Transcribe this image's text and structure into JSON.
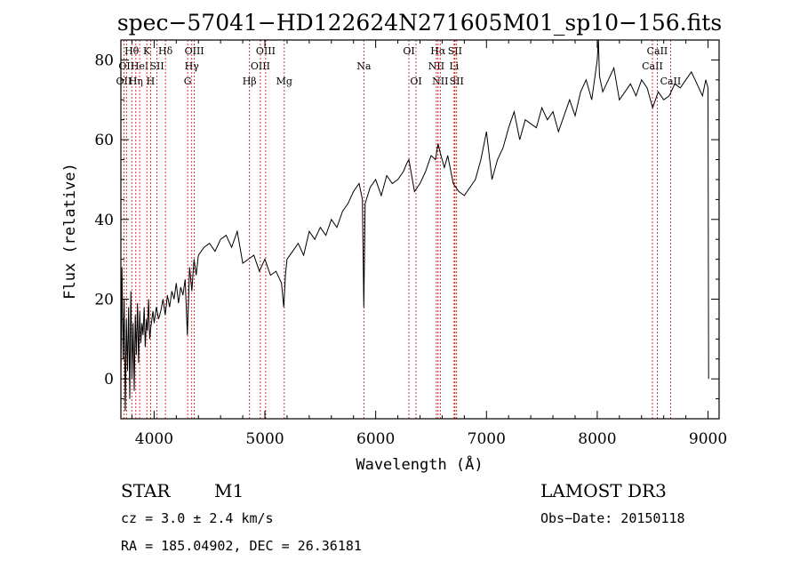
{
  "chart_data": {
    "type": "line",
    "title": "spec−57041−HD122624N271605M01_sp10−156.fits",
    "xlabel": "Wavelength (Å)",
    "ylabel": "Flux (relative)",
    "xlim": [
      3700,
      9100
    ],
    "ylim": [
      -10,
      85
    ],
    "x_ticks": [
      4000,
      5000,
      6000,
      7000,
      8000,
      9000
    ],
    "y_ticks": [
      0,
      20,
      40,
      60,
      80
    ],
    "grid": false,
    "colors": {
      "spectrum": "#000000",
      "line_markers": "#cc0000"
    },
    "series": [
      {
        "x": [
          3700,
          3710,
          3720,
          3730,
          3740,
          3750,
          3760,
          3770,
          3780,
          3790,
          3800,
          3810,
          3820,
          3830,
          3840,
          3850,
          3860,
          3870,
          3880,
          3890,
          3900,
          3910,
          3920,
          3930,
          3940,
          3950,
          3960,
          3970,
          3980,
          3990,
          4000,
          4020,
          4040,
          4060,
          4080,
          4100,
          4120,
          4140,
          4160,
          4180,
          4200,
          4220,
          4240,
          4260,
          4280,
          4300,
          4320,
          4340,
          4360,
          4380,
          4400,
          4450,
          4500,
          4550,
          4600,
          4650,
          4700,
          4750,
          4800,
          4850,
          4900,
          4950,
          5000,
          5050,
          5100,
          5150,
          5170,
          5185,
          5200,
          5250,
          5300,
          5350,
          5400,
          5450,
          5500,
          5550,
          5600,
          5650,
          5700,
          5750,
          5800,
          5850,
          5880,
          5893,
          5905,
          5950,
          6000,
          6050,
          6100,
          6150,
          6200,
          6250,
          6280,
          6300,
          6350,
          6400,
          6450,
          6500,
          6540,
          6563,
          6580,
          6600,
          6620,
          6650,
          6700,
          6750,
          6800,
          6850,
          6900,
          6950,
          7000,
          7050,
          7100,
          7150,
          7200,
          7250,
          7300,
          7350,
          7400,
          7450,
          7500,
          7550,
          7600,
          7650,
          7700,
          7750,
          7800,
          7850,
          7900,
          7950,
          8000,
          8010,
          8020,
          8050,
          8100,
          8150,
          8200,
          8250,
          8300,
          8350,
          8400,
          8450,
          8500,
          8550,
          8600,
          8650,
          8700,
          8750,
          8800,
          8850,
          8900,
          8950,
          8980,
          9000,
          9005
        ],
        "y": [
          0,
          28,
          5,
          20,
          -8,
          15,
          2,
          18,
          -5,
          22,
          0,
          14,
          -3,
          16,
          6,
          19,
          4,
          17,
          9,
          14,
          11,
          18,
          8,
          15,
          12,
          20,
          10,
          13,
          15,
          17,
          14,
          18,
          15,
          17,
          20,
          16,
          21,
          18,
          22,
          20,
          24,
          19,
          23,
          21,
          25,
          11,
          28,
          22,
          30,
          26,
          31,
          33,
          34,
          32,
          35,
          36,
          33,
          37,
          29,
          30,
          31,
          27,
          30,
          26,
          27,
          24,
          18,
          26,
          30,
          32,
          34,
          31,
          37,
          35,
          38,
          36,
          40,
          38,
          42,
          44,
          47,
          49,
          45,
          18,
          44,
          48,
          50,
          46,
          51,
          49,
          50,
          52,
          54,
          55,
          47,
          49,
          52,
          56,
          55,
          59,
          57,
          55,
          53,
          56,
          49,
          47,
          46,
          48,
          50,
          55,
          62,
          50,
          55,
          58,
          63,
          67,
          60,
          65,
          64,
          63,
          68,
          65,
          67,
          62,
          66,
          70,
          66,
          72,
          75,
          70,
          80,
          85,
          76,
          72,
          75,
          78,
          70,
          72,
          74,
          71,
          75,
          73,
          68,
          72,
          70,
          71,
          74,
          73,
          75,
          77,
          74,
          71,
          75,
          73,
          0
        ]
      }
    ],
    "line_marks": [
      {
        "x": 3727,
        "row": 2,
        "label": "OII"
      },
      {
        "x": 3750,
        "row": 1,
        "label": "OII"
      },
      {
        "x": 3798,
        "row": 0,
        "label": "Hθ"
      },
      {
        "x": 3835,
        "row": 2,
        "label": "Hη"
      },
      {
        "x": 3869,
        "row": 1,
        "label": "HeI"
      },
      {
        "x": 3934,
        "row": 0,
        "label": "K"
      },
      {
        "x": 3968,
        "row": 2,
        "label": "H"
      },
      {
        "x": 4026,
        "row": 1,
        "label": "SII"
      },
      {
        "x": 4102,
        "row": 0,
        "label": "Hδ"
      },
      {
        "x": 4303,
        "row": 2,
        "label": "G"
      },
      {
        "x": 4340,
        "row": 1,
        "label": "Hγ"
      },
      {
        "x": 4363,
        "row": 0,
        "label": "OIII"
      },
      {
        "x": 4861,
        "row": 2,
        "label": "Hβ"
      },
      {
        "x": 4959,
        "row": 1,
        "label": "OIII"
      },
      {
        "x": 5007,
        "row": 0,
        "label": "OIII"
      },
      {
        "x": 5175,
        "row": 2,
        "label": "Mg"
      },
      {
        "x": 5893,
        "row": 1,
        "label": "Na"
      },
      {
        "x": 6300,
        "row": 0,
        "label": "OI"
      },
      {
        "x": 6364,
        "row": 2,
        "label": "OI"
      },
      {
        "x": 6548,
        "row": 1,
        "label": "NII"
      },
      {
        "x": 6563,
        "row": 0,
        "label": "Hα"
      },
      {
        "x": 6583,
        "row": 2,
        "label": "NII"
      },
      {
        "x": 6708,
        "row": 1,
        "label": "Li"
      },
      {
        "x": 6716,
        "row": 0,
        "label": "SII"
      },
      {
        "x": 6731,
        "row": 2,
        "label": "SII"
      },
      {
        "x": 8498,
        "row": 1,
        "label": "CaII"
      },
      {
        "x": 8542,
        "row": 0,
        "label": "CaII"
      },
      {
        "x": 8662,
        "row": 2,
        "label": "CaII"
      }
    ]
  },
  "info": {
    "class": "STAR",
    "subclass": "M1",
    "survey": "LAMOST DR3",
    "cz": "cz = 3.0 ± 2.4 km/s",
    "obs_date": "Obs−Date: 20150118",
    "coords": "RA = 185.04902, DEC =  26.36181"
  }
}
